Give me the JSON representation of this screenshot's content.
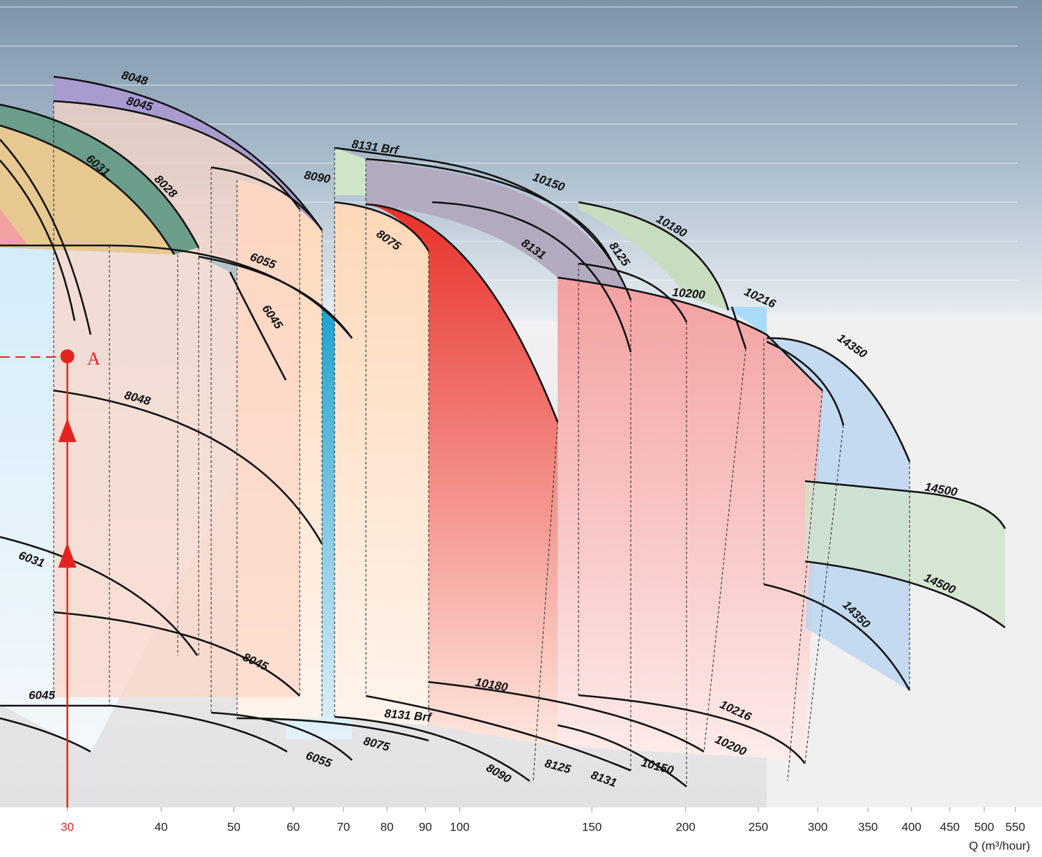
{
  "chart_data": {
    "type": "line",
    "xscale": "log",
    "xlim": [
      24.4,
      597
    ],
    "xticks": [
      30,
      40,
      50,
      60,
      70,
      80,
      90,
      100,
      150,
      200,
      250,
      300,
      350,
      400,
      450,
      500,
      550
    ],
    "xlabel": "Q (m³/hour)",
    "highlight_x": 30,
    "highlight_color": "#e52420",
    "point_label": "A",
    "curve_labels": [
      "8048",
      "8045",
      "6031",
      "8028",
      "8131 Brf",
      "8090",
      "10150",
      "8075",
      "8131",
      "8125",
      "10180",
      "6055",
      "6045",
      "10200",
      "10216",
      "14350",
      "8048",
      "6031",
      "8045",
      "6045",
      "6055",
      "8075",
      "8131 Brf",
      "8090",
      "8125",
      "8131",
      "10180",
      "10150",
      "10216",
      "10200",
      "14350",
      "14500",
      "14500"
    ]
  }
}
